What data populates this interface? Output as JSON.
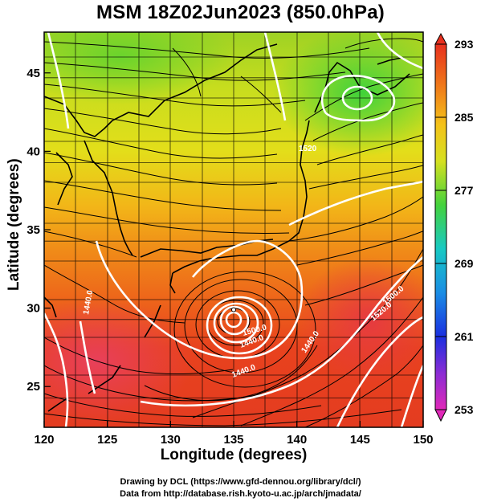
{
  "title": "MSM 18Z02Jun2023 (850.0hPa)",
  "axes": {
    "xlabel": "Longitude (degrees)",
    "ylabel": "Latitude  (degrees)",
    "xlim": [
      120,
      150
    ],
    "ylim": [
      22.4,
      47.6
    ],
    "x_ticks": [
      "120",
      "125",
      "130",
      "135",
      "140",
      "145",
      "150"
    ],
    "y_ticks": [
      "25",
      "30",
      "35",
      "40",
      "45"
    ]
  },
  "colorbar": {
    "min": 253,
    "max": 293,
    "ticks": [
      "293",
      "285",
      "277",
      "269",
      "261",
      "253"
    ]
  },
  "contour_labels": [
    "1440.0",
    "1500.0",
    "1440.0",
    "1440.0",
    "1440.0",
    "1500.0",
    "1520.0",
    "1520"
  ],
  "footer": {
    "line1": "Drawing by DCL (https://www.gfd-dennou.org/library/dcl/)",
    "line2": "Data from http://database.rish.kyoto-u.ac.jp/arch/jmadata/"
  },
  "chart_data": {
    "type": "heatmap",
    "title": "MSM 18Z02Jun2023 (850.0hPa)",
    "xlabel": "Longitude (degrees)",
    "ylabel": "Latitude  (degrees)",
    "xlim": [
      120,
      150
    ],
    "ylim": [
      22.4,
      47.6
    ],
    "color_range": [
      253,
      293
    ],
    "grid": true,
    "typhoon_center": {
      "lon": 135.0,
      "lat": 29.9
    }
  }
}
